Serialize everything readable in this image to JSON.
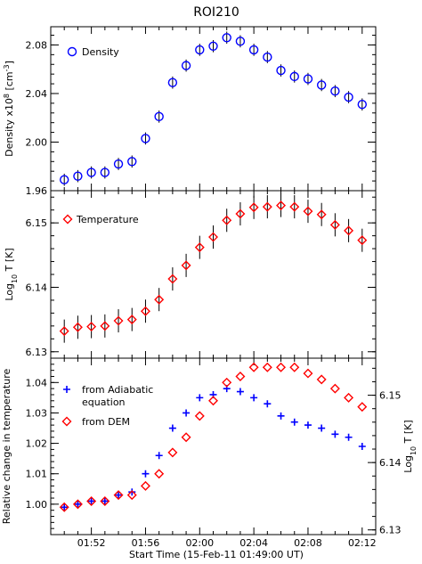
{
  "title": "ROI210",
  "xlabel": "Start Time (15-Feb-11 01:49:00 UT)",
  "x_tick_labels": [
    "01:52",
    "01:56",
    "02:00",
    "02:04",
    "02:08",
    "02:12"
  ],
  "colors": {
    "density": "#0000ff",
    "temperature": "#ff0000",
    "adiabatic": "#0000ff",
    "dem": "#ff0000"
  },
  "chart_data": [
    {
      "type": "scatter",
      "panel": "top",
      "ylabel_main": "Density x10",
      "ylabel_sup": "8",
      "ylabel_unit": " [cm",
      "ylabel_unit_sup": "-3",
      "ylabel_close": "]",
      "ylim": [
        1.96,
        2.095
      ],
      "y_ticks": [
        1.96,
        2.0,
        2.04,
        2.08
      ],
      "y_tick_labels": [
        "1.96",
        "2.00",
        "2.04",
        "2.08"
      ],
      "series": [
        {
          "name": "Density",
          "marker": "circle",
          "color": "#0000ff",
          "points": [
            {
              "x": "01:50",
              "y": 1.969,
              "err": 0.005
            },
            {
              "x": "01:51",
              "y": 1.972,
              "err": 0.005
            },
            {
              "x": "01:52",
              "y": 1.975,
              "err": 0.005
            },
            {
              "x": "01:53",
              "y": 1.975,
              "err": 0.005
            },
            {
              "x": "01:54",
              "y": 1.982,
              "err": 0.005
            },
            {
              "x": "01:55",
              "y": 1.984,
              "err": 0.005
            },
            {
              "x": "01:56",
              "y": 2.003,
              "err": 0.005
            },
            {
              "x": "01:57",
              "y": 2.021,
              "err": 0.005
            },
            {
              "x": "01:58",
              "y": 2.049,
              "err": 0.005
            },
            {
              "x": "01:59",
              "y": 2.063,
              "err": 0.005
            },
            {
              "x": "02:00",
              "y": 2.076,
              "err": 0.005
            },
            {
              "x": "02:01",
              "y": 2.079,
              "err": 0.005
            },
            {
              "x": "02:02",
              "y": 2.086,
              "err": 0.005
            },
            {
              "x": "02:03",
              "y": 2.083,
              "err": 0.005
            },
            {
              "x": "02:04",
              "y": 2.076,
              "err": 0.005
            },
            {
              "x": "02:05",
              "y": 2.07,
              "err": 0.005
            },
            {
              "x": "02:06",
              "y": 2.059,
              "err": 0.005
            },
            {
              "x": "02:07",
              "y": 2.054,
              "err": 0.005
            },
            {
              "x": "02:08",
              "y": 2.052,
              "err": 0.005
            },
            {
              "x": "02:09",
              "y": 2.047,
              "err": 0.005
            },
            {
              "x": "02:10",
              "y": 2.042,
              "err": 0.005
            },
            {
              "x": "02:11",
              "y": 2.037,
              "err": 0.005
            },
            {
              "x": "02:12",
              "y": 2.031,
              "err": 0.005
            }
          ]
        }
      ]
    },
    {
      "type": "scatter",
      "panel": "middle",
      "ylabel_main": "Log",
      "ylabel_sub": "10",
      "ylabel_rest": " T [K]",
      "ylim": [
        6.129,
        6.155
      ],
      "y_ticks": [
        6.13,
        6.14,
        6.15
      ],
      "y_tick_labels": [
        "6.13",
        "6.14",
        "6.15"
      ],
      "series": [
        {
          "name": "Temperature",
          "marker": "diamond",
          "color": "#ff0000",
          "points": [
            {
              "x": "01:50",
              "y": 6.1332,
              "err": 0.0018
            },
            {
              "x": "01:51",
              "y": 6.1338,
              "err": 0.0018
            },
            {
              "x": "01:52",
              "y": 6.1339,
              "err": 0.0018
            },
            {
              "x": "01:53",
              "y": 6.134,
              "err": 0.0018
            },
            {
              "x": "01:54",
              "y": 6.1348,
              "err": 0.0018
            },
            {
              "x": "01:55",
              "y": 6.135,
              "err": 0.0018
            },
            {
              "x": "01:56",
              "y": 6.1363,
              "err": 0.0018
            },
            {
              "x": "01:57",
              "y": 6.1381,
              "err": 0.0018
            },
            {
              "x": "01:58",
              "y": 6.1413,
              "err": 0.0018
            },
            {
              "x": "01:59",
              "y": 6.1434,
              "err": 0.0018
            },
            {
              "x": "02:00",
              "y": 6.1462,
              "err": 0.0018
            },
            {
              "x": "02:01",
              "y": 6.1478,
              "err": 0.0018
            },
            {
              "x": "02:02",
              "y": 6.1504,
              "err": 0.0018
            },
            {
              "x": "02:03",
              "y": 6.1514,
              "err": 0.0018
            },
            {
              "x": "02:04",
              "y": 6.1524,
              "err": 0.0018
            },
            {
              "x": "02:05",
              "y": 6.1525,
              "err": 0.0018
            },
            {
              "x": "02:06",
              "y": 6.1527,
              "err": 0.0018
            },
            {
              "x": "02:07",
              "y": 6.1525,
              "err": 0.0018
            },
            {
              "x": "02:08",
              "y": 6.1518,
              "err": 0.0018
            },
            {
              "x": "02:09",
              "y": 6.1513,
              "err": 0.0018
            },
            {
              "x": "02:10",
              "y": 6.1497,
              "err": 0.0018
            },
            {
              "x": "02:11",
              "y": 6.1488,
              "err": 0.0018
            },
            {
              "x": "02:12",
              "y": 6.1473,
              "err": 0.0018
            }
          ]
        }
      ]
    },
    {
      "type": "scatter",
      "panel": "bottom",
      "ylabel": "Relative change in temperature",
      "ylim": [
        0.99,
        1.048
      ],
      "y_ticks": [
        1.0,
        1.01,
        1.02,
        1.03,
        1.04
      ],
      "y_tick_labels": [
        "1.00",
        "1.01",
        "1.02",
        "1.03",
        "1.04"
      ],
      "right_ylabel_main": "Log",
      "right_ylabel_sub": "10",
      "right_ylabel_rest": " T [K]",
      "right_ylim": [
        6.1293,
        6.1555
      ],
      "right_y_ticks": [
        6.13,
        6.14,
        6.15
      ],
      "right_y_tick_labels": [
        "6.13",
        "6.14",
        "6.15"
      ],
      "series": [
        {
          "name": "from Adiabatic equation",
          "name_lines": [
            "from Adiabatic",
            "equation"
          ],
          "marker": "plus",
          "color": "#0000ff",
          "points": [
            {
              "x": "01:50",
              "y": 0.999
            },
            {
              "x": "01:51",
              "y": 1.0
            },
            {
              "x": "01:52",
              "y": 1.001
            },
            {
              "x": "01:53",
              "y": 1.001
            },
            {
              "x": "01:54",
              "y": 1.003
            },
            {
              "x": "01:55",
              "y": 1.004
            },
            {
              "x": "01:56",
              "y": 1.01
            },
            {
              "x": "01:57",
              "y": 1.016
            },
            {
              "x": "01:58",
              "y": 1.025
            },
            {
              "x": "01:59",
              "y": 1.03
            },
            {
              "x": "02:00",
              "y": 1.035
            },
            {
              "x": "02:01",
              "y": 1.036
            },
            {
              "x": "02:02",
              "y": 1.038
            },
            {
              "x": "02:03",
              "y": 1.037
            },
            {
              "x": "02:04",
              "y": 1.035
            },
            {
              "x": "02:05",
              "y": 1.033
            },
            {
              "x": "02:06",
              "y": 1.029
            },
            {
              "x": "02:07",
              "y": 1.027
            },
            {
              "x": "02:08",
              "y": 1.026
            },
            {
              "x": "02:09",
              "y": 1.025
            },
            {
              "x": "02:10",
              "y": 1.023
            },
            {
              "x": "02:11",
              "y": 1.022
            },
            {
              "x": "02:12",
              "y": 1.019
            }
          ]
        },
        {
          "name": "from DEM",
          "marker": "diamond",
          "color": "#ff0000",
          "points": [
            {
              "x": "01:50",
              "y": 0.999
            },
            {
              "x": "01:51",
              "y": 1.0
            },
            {
              "x": "01:52",
              "y": 1.001
            },
            {
              "x": "01:53",
              "y": 1.001
            },
            {
              "x": "01:54",
              "y": 1.003
            },
            {
              "x": "01:55",
              "y": 1.003
            },
            {
              "x": "01:56",
              "y": 1.006
            },
            {
              "x": "01:57",
              "y": 1.01
            },
            {
              "x": "01:58",
              "y": 1.017
            },
            {
              "x": "01:59",
              "y": 1.022
            },
            {
              "x": "02:00",
              "y": 1.029
            },
            {
              "x": "02:01",
              "y": 1.034
            },
            {
              "x": "02:02",
              "y": 1.04
            },
            {
              "x": "02:03",
              "y": 1.042
            },
            {
              "x": "02:04",
              "y": 1.045
            },
            {
              "x": "02:05",
              "y": 1.045
            },
            {
              "x": "02:06",
              "y": 1.045
            },
            {
              "x": "02:07",
              "y": 1.045
            },
            {
              "x": "02:08",
              "y": 1.043
            },
            {
              "x": "02:09",
              "y": 1.041
            },
            {
              "x": "02:10",
              "y": 1.038
            },
            {
              "x": "02:11",
              "y": 1.035
            },
            {
              "x": "02:12",
              "y": 1.032
            }
          ]
        }
      ]
    }
  ]
}
